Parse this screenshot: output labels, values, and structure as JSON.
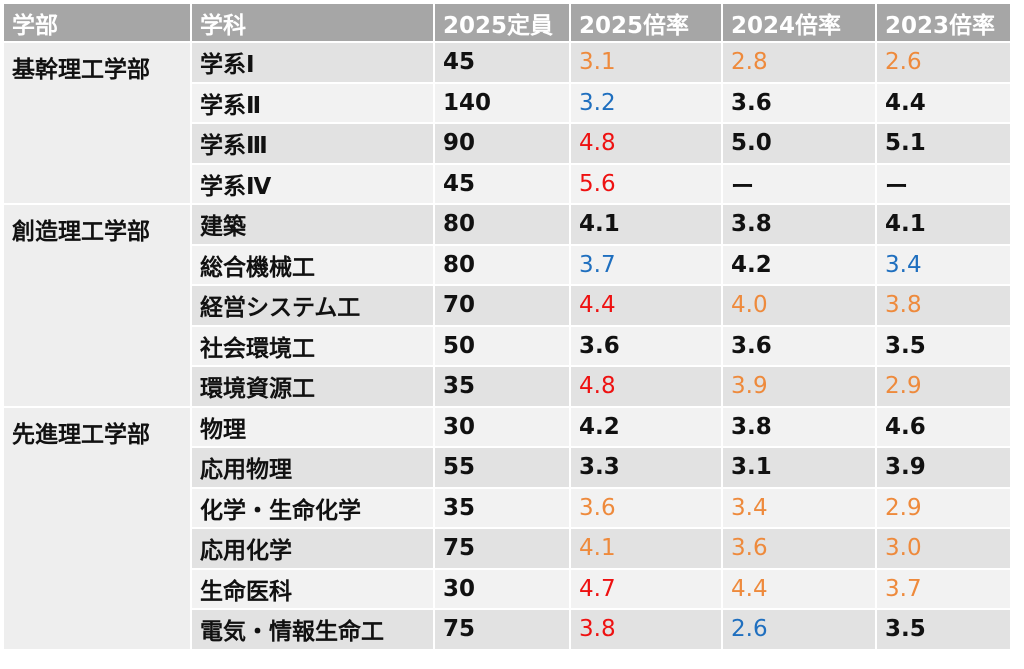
{
  "colors": {
    "black": "#111111",
    "red": "#ee1111",
    "orange": "#ee8a3c",
    "blue": "#1f6fbf",
    "header_bg": "#a6a6a6"
  },
  "headers": [
    "学部",
    "学科",
    "2025定員",
    "2025倍率",
    "2024倍率",
    "2023倍率"
  ],
  "faculties": [
    {
      "name": "基幹理工学部",
      "departments": [
        {
          "name": "学系Ⅰ",
          "capacity": "45",
          "r2025": {
            "v": "3.1",
            "c": "orange"
          },
          "r2024": {
            "v": "2.8",
            "c": "orange"
          },
          "r2023": {
            "v": "2.6",
            "c": "orange"
          }
        },
        {
          "name": "学系Ⅱ",
          "capacity": "140",
          "r2025": {
            "v": "3.2",
            "c": "blue"
          },
          "r2024": {
            "v": "3.6",
            "c": "black"
          },
          "r2023": {
            "v": "4.4",
            "c": "black"
          }
        },
        {
          "name": "学系Ⅲ",
          "capacity": "90",
          "r2025": {
            "v": "4.8",
            "c": "red"
          },
          "r2024": {
            "v": "5.0",
            "c": "black"
          },
          "r2023": {
            "v": "5.1",
            "c": "black"
          }
        },
        {
          "name": "学系Ⅳ",
          "capacity": "45",
          "r2025": {
            "v": "5.6",
            "c": "red"
          },
          "r2024": {
            "v": "ー",
            "c": "black"
          },
          "r2023": {
            "v": "ー",
            "c": "black"
          }
        }
      ]
    },
    {
      "name": "創造理工学部",
      "departments": [
        {
          "name": "建築",
          "capacity": "80",
          "r2025": {
            "v": "4.1",
            "c": "black"
          },
          "r2024": {
            "v": "3.8",
            "c": "black"
          },
          "r2023": {
            "v": "4.1",
            "c": "black"
          }
        },
        {
          "name": "総合機械工",
          "capacity": "80",
          "r2025": {
            "v": "3.7",
            "c": "blue"
          },
          "r2024": {
            "v": "4.2",
            "c": "black"
          },
          "r2023": {
            "v": "3.4",
            "c": "blue"
          }
        },
        {
          "name": "経営システム工",
          "capacity": "70",
          "r2025": {
            "v": "4.4",
            "c": "red"
          },
          "r2024": {
            "v": "4.0",
            "c": "orange"
          },
          "r2023": {
            "v": "3.8",
            "c": "orange"
          }
        },
        {
          "name": "社会環境工",
          "capacity": "50",
          "r2025": {
            "v": "3.6",
            "c": "black"
          },
          "r2024": {
            "v": "3.6",
            "c": "black"
          },
          "r2023": {
            "v": "3.5",
            "c": "black"
          }
        },
        {
          "name": "環境資源工",
          "capacity": "35",
          "r2025": {
            "v": "4.8",
            "c": "red"
          },
          "r2024": {
            "v": "3.9",
            "c": "orange"
          },
          "r2023": {
            "v": "2.9",
            "c": "orange"
          }
        }
      ]
    },
    {
      "name": "先進理工学部",
      "departments": [
        {
          "name": "物理",
          "capacity": "30",
          "r2025": {
            "v": "4.2",
            "c": "black"
          },
          "r2024": {
            "v": "3.8",
            "c": "black"
          },
          "r2023": {
            "v": "4.6",
            "c": "black"
          }
        },
        {
          "name": "応用物理",
          "capacity": "55",
          "r2025": {
            "v": "3.3",
            "c": "black"
          },
          "r2024": {
            "v": "3.1",
            "c": "black"
          },
          "r2023": {
            "v": "3.9",
            "c": "black"
          }
        },
        {
          "name": "化学・生命化学",
          "capacity": "35",
          "r2025": {
            "v": "3.6",
            "c": "orange"
          },
          "r2024": {
            "v": "3.4",
            "c": "orange"
          },
          "r2023": {
            "v": "2.9",
            "c": "orange"
          }
        },
        {
          "name": "応用化学",
          "capacity": "75",
          "r2025": {
            "v": "4.1",
            "c": "orange"
          },
          "r2024": {
            "v": "3.6",
            "c": "orange"
          },
          "r2023": {
            "v": "3.0",
            "c": "orange"
          }
        },
        {
          "name": "生命医科",
          "capacity": "30",
          "r2025": {
            "v": "4.7",
            "c": "red"
          },
          "r2024": {
            "v": "4.4",
            "c": "orange"
          },
          "r2023": {
            "v": "3.7",
            "c": "orange"
          }
        },
        {
          "name": "電気・情報生命工",
          "capacity": "75",
          "r2025": {
            "v": "3.8",
            "c": "red"
          },
          "r2024": {
            "v": "2.6",
            "c": "blue"
          },
          "r2023": {
            "v": "3.5",
            "c": "black"
          }
        }
      ]
    }
  ]
}
